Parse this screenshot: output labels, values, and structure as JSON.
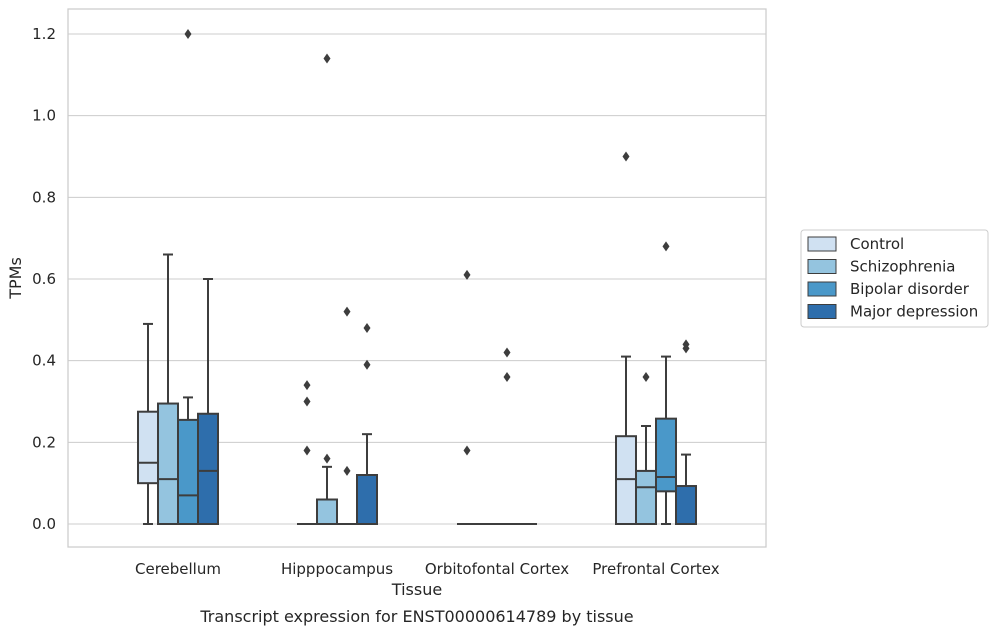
{
  "chart_data": {
    "type": "box",
    "title": "Transcript expression for ENST00000614789 by tissue",
    "xlabel": "Tissue",
    "ylabel": "TPMs",
    "ylim": [
      -0.06,
      1.26
    ],
    "yticks": [
      "0.0",
      "0.2",
      "0.4",
      "0.6",
      "0.8",
      "1.0",
      "1.2"
    ],
    "grid": "horizontal",
    "legend_position": "right",
    "categories": [
      "Cerebellum",
      "Hipppocampus",
      "Orbitofontal Cortex",
      "Prefrontal Cortex"
    ],
    "series": [
      {
        "name": "Control",
        "color": "#d0e1f2",
        "boxes": [
          {
            "whislo": 0.0,
            "q1": 0.1,
            "med": 0.15,
            "q3": 0.275,
            "whishi": 0.49,
            "fliers": []
          },
          {
            "whislo": 0.0,
            "q1": 0.0,
            "med": 0.0,
            "q3": 0.0,
            "whishi": 0.0,
            "fliers": [
              0.18,
              0.3,
              0.34
            ]
          },
          {
            "whislo": 0.0,
            "q1": 0.0,
            "med": 0.0,
            "q3": 0.0,
            "whishi": 0.0,
            "fliers": [
              0.18,
              0.61
            ]
          },
          {
            "whislo": 0.0,
            "q1": 0.0,
            "med": 0.11,
            "q3": 0.215,
            "whishi": 0.41,
            "fliers": [
              0.9
            ]
          }
        ]
      },
      {
        "name": "Schizophrenia",
        "color": "#94c4df",
        "boxes": [
          {
            "whislo": 0.0,
            "q1": 0.0,
            "med": 0.11,
            "q3": 0.295,
            "whishi": 0.66,
            "fliers": []
          },
          {
            "whislo": 0.0,
            "q1": 0.0,
            "med": 0.0,
            "q3": 0.06,
            "whishi": 0.14,
            "fliers": [
              0.16,
              1.14
            ]
          },
          {
            "whislo": 0.0,
            "q1": 0.0,
            "med": 0.0,
            "q3": 0.0,
            "whishi": 0.0,
            "fliers": []
          },
          {
            "whislo": 0.0,
            "q1": 0.0,
            "med": 0.09,
            "q3": 0.13,
            "whishi": 0.24,
            "fliers": [
              0.36
            ]
          }
        ]
      },
      {
        "name": "Bipolar disorder",
        "color": "#4a98c9",
        "boxes": [
          {
            "whislo": 0.0,
            "q1": 0.0,
            "med": 0.07,
            "q3": 0.255,
            "whishi": 0.31,
            "fliers": [
              1.2
            ]
          },
          {
            "whislo": 0.0,
            "q1": 0.0,
            "med": 0.0,
            "q3": 0.0,
            "whishi": 0.0,
            "fliers": [
              0.13,
              0.52
            ]
          },
          {
            "whislo": 0.0,
            "q1": 0.0,
            "med": 0.0,
            "q3": 0.0,
            "whishi": 0.0,
            "fliers": [
              0.36,
              0.42
            ]
          },
          {
            "whislo": 0.0,
            "q1": 0.08,
            "med": 0.115,
            "q3": 0.258,
            "whishi": 0.41,
            "fliers": [
              0.68
            ]
          }
        ]
      },
      {
        "name": "Major depression",
        "color": "#2e6eac",
        "boxes": [
          {
            "whislo": 0.0,
            "q1": 0.0,
            "med": 0.13,
            "q3": 0.27,
            "whishi": 0.6,
            "fliers": []
          },
          {
            "whislo": 0.0,
            "q1": 0.0,
            "med": 0.0,
            "q3": 0.12,
            "whishi": 0.22,
            "fliers": [
              0.39,
              0.48
            ]
          },
          {
            "whislo": 0.0,
            "q1": 0.0,
            "med": 0.0,
            "q3": 0.0,
            "whishi": 0.0,
            "fliers": []
          },
          {
            "whislo": 0.0,
            "q1": 0.0,
            "med": 0.0,
            "q3": 0.093,
            "whishi": 0.17,
            "fliers": [
              0.43,
              0.44
            ]
          }
        ]
      }
    ]
  }
}
